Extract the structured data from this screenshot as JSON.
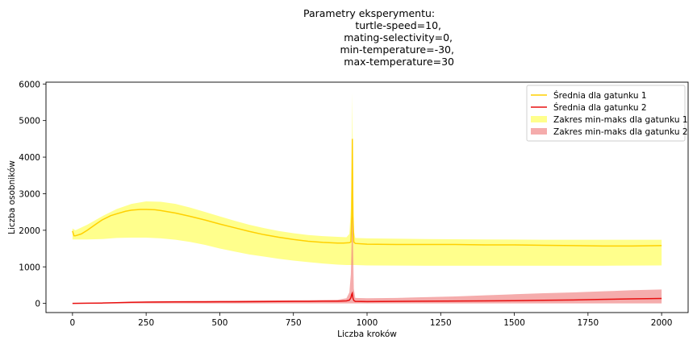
{
  "chart_data": {
    "type": "line",
    "title_lines": [
      "Parametry eksperymentu:",
      "turtle-speed=10,",
      "mating-selectivity=0,",
      "min-temperature=-30,",
      "max-temperature=30"
    ],
    "xlabel": "Liczba kroków",
    "ylabel": "Liczba osobników",
    "xlim": [
      -90,
      2090
    ],
    "ylim": [
      -250,
      6050
    ],
    "xticks": [
      0,
      250,
      500,
      750,
      1000,
      1250,
      1500,
      1750,
      2000
    ],
    "yticks": [
      0,
      1000,
      2000,
      3000,
      4000,
      5000,
      6000
    ],
    "grid": false,
    "legend_position": "top-right",
    "series": [
      {
        "name": "Średnia dla gatunku 1",
        "kind": "line",
        "color": "#ffd000",
        "x": [
          0,
          5,
          10,
          30,
          50,
          80,
          100,
          130,
          150,
          180,
          200,
          230,
          250,
          280,
          300,
          350,
          400,
          450,
          500,
          550,
          600,
          650,
          700,
          750,
          800,
          850,
          900,
          920,
          940,
          945,
          948,
          950,
          952,
          955,
          960,
          1000,
          1100,
          1200,
          1300,
          1400,
          1500,
          1600,
          1700,
          1800,
          1900,
          2000
        ],
        "y": [
          1980,
          1850,
          1850,
          1900,
          2000,
          2170,
          2280,
          2400,
          2450,
          2520,
          2550,
          2570,
          2570,
          2560,
          2540,
          2470,
          2380,
          2280,
          2170,
          2070,
          1970,
          1880,
          1810,
          1750,
          1700,
          1670,
          1650,
          1650,
          1660,
          1680,
          2400,
          4500,
          2400,
          1680,
          1640,
          1620,
          1610,
          1610,
          1610,
          1600,
          1600,
          1590,
          1580,
          1570,
          1570,
          1580
        ]
      },
      {
        "name": "Średnia dla gatunku 2",
        "kind": "line",
        "color": "#e81010",
        "x": [
          0,
          50,
          100,
          150,
          200,
          250,
          300,
          350,
          400,
          450,
          500,
          550,
          600,
          650,
          700,
          750,
          800,
          850,
          900,
          930,
          940,
          945,
          948,
          950,
          952,
          955,
          960,
          1000,
          1200,
          1400,
          1500,
          1600,
          1700,
          1800,
          1900,
          2000
        ],
        "y": [
          0,
          5,
          10,
          20,
          30,
          35,
          40,
          42,
          42,
          42,
          45,
          45,
          48,
          50,
          52,
          55,
          55,
          60,
          60,
          70,
          90,
          150,
          250,
          280,
          150,
          80,
          55,
          50,
          60,
          70,
          75,
          85,
          95,
          110,
          125,
          135
        ]
      },
      {
        "name": "Zakres min-maks dla gatunku 1",
        "kind": "band",
        "color": "#ffff66",
        "x": [
          0,
          10,
          50,
          100,
          150,
          200,
          250,
          300,
          350,
          400,
          450,
          500,
          550,
          600,
          650,
          700,
          750,
          800,
          850,
          900,
          930,
          940,
          945,
          948,
          950,
          952,
          955,
          960,
          1000,
          1200,
          1400,
          1600,
          1800,
          2000
        ],
        "low": [
          1750,
          1750,
          1750,
          1760,
          1790,
          1800,
          1800,
          1780,
          1740,
          1680,
          1600,
          1500,
          1420,
          1340,
          1280,
          1220,
          1170,
          1130,
          1090,
          1060,
          1050,
          1050,
          1050,
          1050,
          1050,
          1050,
          1050,
          1050,
          1040,
          1030,
          1030,
          1030,
          1030,
          1040
        ],
        "high": [
          2050,
          2000,
          2150,
          2380,
          2580,
          2720,
          2790,
          2780,
          2720,
          2620,
          2500,
          2380,
          2260,
          2150,
          2060,
          1980,
          1920,
          1870,
          1840,
          1820,
          1810,
          1900,
          2600,
          3800,
          5750,
          3800,
          2000,
          1790,
          1780,
          1760,
          1750,
          1740,
          1740,
          1740
        ]
      },
      {
        "name": "Zakres min-maks dla gatunku 2",
        "kind": "band",
        "color": "#f08080",
        "x": [
          0,
          100,
          200,
          300,
          400,
          500,
          600,
          700,
          800,
          900,
          930,
          940,
          945,
          948,
          950,
          952,
          955,
          960,
          1000,
          1100,
          1200,
          1300,
          1400,
          1500,
          1600,
          1700,
          1800,
          1900,
          2000
        ],
        "low": [
          0,
          0,
          0,
          0,
          0,
          0,
          0,
          0,
          0,
          0,
          0,
          0,
          0,
          0,
          0,
          0,
          0,
          0,
          0,
          0,
          0,
          0,
          0,
          0,
          0,
          0,
          0,
          0,
          0
        ],
        "high": [
          10,
          20,
          40,
          60,
          70,
          75,
          80,
          85,
          90,
          100,
          140,
          300,
          800,
          1800,
          4500,
          1800,
          400,
          150,
          140,
          150,
          170,
          190,
          220,
          250,
          280,
          300,
          330,
          360,
          380
        ]
      }
    ]
  }
}
